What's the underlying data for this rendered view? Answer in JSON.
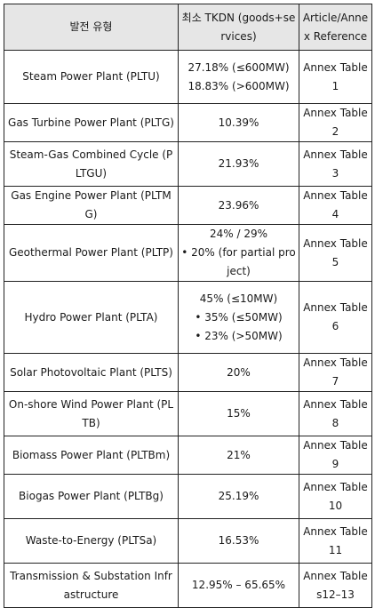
{
  "headers": [
    "발전 유형",
    "최소 TKDN (goods+services)",
    "Article/Annex Reference"
  ],
  "rows": [
    {
      "type": "Steam Power Plant (PLTU)",
      "tkdn": [
        "27.18% (≤600MW)",
        "18.83% (>600MW)"
      ],
      "ref": "Annex Table1"
    },
    {
      "type": "Gas Turbine Power Plant (PLTG)",
      "tkdn": [
        "10.39%"
      ],
      "ref": "Annex Table2"
    },
    {
      "type": "Steam-Gas Combined Cycle (PLTGU)",
      "tkdn": [
        "21.93%"
      ],
      "ref": "Annex Table3"
    },
    {
      "type": "Gas Engine Power Plant (PLTMG)",
      "tkdn": [
        "23.96%"
      ],
      "ref": "Annex Table4"
    },
    {
      "type": "Geothermal Power Plant (PLTP)",
      "tkdn": [
        "24% / 29%",
        "• 20% (for partial project)"
      ],
      "ref": "Annex Table5"
    },
    {
      "type": "Hydro Power Plant (PLTA)",
      "tkdn": [
        "45% (≤10MW)",
        "• 35% (≤50MW)",
        "• 23% (>50MW)"
      ],
      "ref": "Annex Table6"
    },
    {
      "type": "Solar Photovoltaic Plant (PLTS)",
      "tkdn": [
        "20%"
      ],
      "ref": "Annex Table7"
    },
    {
      "type": "On-shore Wind Power Plant (PLTB)",
      "tkdn": [
        "15%"
      ],
      "ref": "Annex Table8"
    },
    {
      "type": "Biomass Power Plant (PLTBm)",
      "tkdn": [
        "21%"
      ],
      "ref": "Annex Table9"
    },
    {
      "type": "Biogas Power Plant (PLTBg)",
      "tkdn": [
        "25.19%"
      ],
      "ref": "Annex Table10"
    },
    {
      "type": "Waste-to-Energy (PLTSa)",
      "tkdn": [
        "16.53%"
      ],
      "ref": "Annex Table11"
    },
    {
      "type": "Transmission & Substation Infrastructure",
      "tkdn": [
        "12.95% – 65.65%"
      ],
      "ref": "Annex Tables12–13"
    }
  ]
}
